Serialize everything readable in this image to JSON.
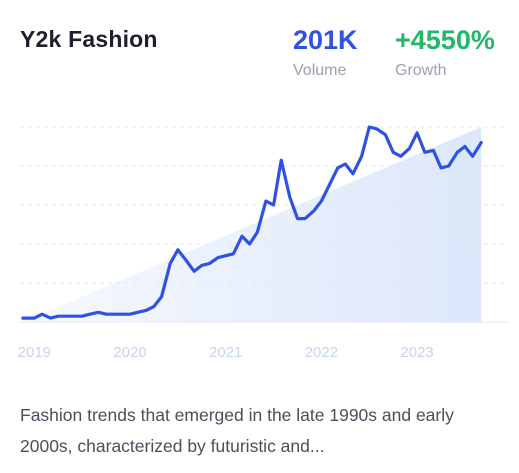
{
  "card": {
    "title": "Y2k Fashion",
    "volume": {
      "value": "201K",
      "label": "Volume"
    },
    "growth": {
      "value": "+4550%",
      "label": "Growth"
    },
    "description": "Fashion trends that emerged in the late 1990s and early 2000s, characterized by futuristic and..."
  },
  "colors": {
    "line": "#2f52e0",
    "growth": "#22b866",
    "area": "#dbe6fb",
    "axis_text": "#c7d3ee"
  },
  "chart_data": {
    "type": "line",
    "title": "",
    "xlabel": "",
    "ylabel": "",
    "x_ticks": [
      "2019",
      "2020",
      "2021",
      "2022",
      "2023"
    ],
    "x_tick_values": [
      2019.0,
      2020.0,
      2021.0,
      2022.0,
      2023.0
    ],
    "xlim": [
      2018.85,
      2023.95
    ],
    "ylim": [
      0,
      100
    ],
    "grid": true,
    "y_axis_labels_shown": false,
    "series": [
      {
        "values": [
          [
            2018.88,
            2
          ],
          [
            2019.0,
            2
          ],
          [
            2019.08,
            4
          ],
          [
            2019.17,
            2
          ],
          [
            2019.25,
            3
          ],
          [
            2019.33,
            3
          ],
          [
            2019.42,
            3
          ],
          [
            2019.5,
            3
          ],
          [
            2019.58,
            4
          ],
          [
            2019.67,
            5
          ],
          [
            2019.75,
            4
          ],
          [
            2019.83,
            4
          ],
          [
            2019.92,
            4
          ],
          [
            2020.0,
            4
          ],
          [
            2020.08,
            5
          ],
          [
            2020.17,
            6
          ],
          [
            2020.25,
            8
          ],
          [
            2020.33,
            13
          ],
          [
            2020.42,
            30
          ],
          [
            2020.5,
            37
          ],
          [
            2020.58,
            32
          ],
          [
            2020.67,
            26
          ],
          [
            2020.75,
            29
          ],
          [
            2020.83,
            30
          ],
          [
            2020.92,
            33
          ],
          [
            2021.0,
            34
          ],
          [
            2021.08,
            35
          ],
          [
            2021.17,
            44
          ],
          [
            2021.25,
            40
          ],
          [
            2021.33,
            46
          ],
          [
            2021.42,
            62
          ],
          [
            2021.5,
            60
          ],
          [
            2021.58,
            83
          ],
          [
            2021.67,
            64
          ],
          [
            2021.75,
            53
          ],
          [
            2021.83,
            53
          ],
          [
            2021.92,
            57
          ],
          [
            2022.0,
            62
          ],
          [
            2022.08,
            70
          ],
          [
            2022.17,
            79
          ],
          [
            2022.25,
            81
          ],
          [
            2022.33,
            76
          ],
          [
            2022.42,
            85
          ],
          [
            2022.5,
            100
          ],
          [
            2022.58,
            99
          ],
          [
            2022.67,
            96
          ],
          [
            2022.75,
            87
          ],
          [
            2022.83,
            85
          ],
          [
            2022.92,
            89
          ],
          [
            2023.0,
            97
          ],
          [
            2023.08,
            87
          ],
          [
            2023.17,
            88
          ],
          [
            2023.25,
            79
          ],
          [
            2023.33,
            80
          ],
          [
            2023.42,
            87
          ],
          [
            2023.5,
            90
          ],
          [
            2023.58,
            85
          ],
          [
            2023.67,
            92
          ]
        ]
      }
    ]
  }
}
